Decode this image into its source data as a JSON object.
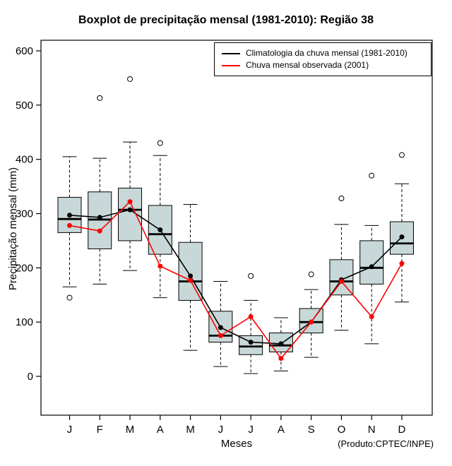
{
  "chart_data": {
    "type": "boxplot",
    "title": "Boxplot de precipitação mensal (1981-2010): Região 38",
    "xlabel": "Meses",
    "ylabel": "Precipitação mensal (mm)",
    "credit": "(Produto:CPTEC/INPE)",
    "ylim": [
      -70,
      620
    ],
    "yticks": [
      0,
      100,
      200,
      300,
      400,
      500,
      600
    ],
    "grid": false,
    "legend_position": "top-right-inside",
    "box_fill": "#c8d8d8",
    "categories": [
      "J",
      "F",
      "M",
      "A",
      "M",
      "J",
      "J",
      "A",
      "S",
      "O",
      "N",
      "D"
    ],
    "legend": [
      {
        "label": "Climatologia da chuva mensal (1981-2010)",
        "color": "#000000"
      },
      {
        "label": "Chuva mensal observada (2001)",
        "color": "#ff0000"
      }
    ],
    "boxes": [
      {
        "low": 165,
        "q1": 265,
        "median": 290,
        "q3": 330,
        "high": 405,
        "outliers": [
          145
        ]
      },
      {
        "low": 170,
        "q1": 235,
        "median": 289,
        "q3": 340,
        "high": 402,
        "outliers": [
          513
        ]
      },
      {
        "low": 195,
        "q1": 250,
        "median": 307,
        "q3": 347,
        "high": 432,
        "outliers": [
          548
        ]
      },
      {
        "low": 145,
        "q1": 225,
        "median": 262,
        "q3": 315,
        "high": 407,
        "outliers": [
          430
        ]
      },
      {
        "low": 48,
        "q1": 140,
        "median": 175,
        "q3": 247,
        "high": 317,
        "outliers": []
      },
      {
        "low": 18,
        "q1": 63,
        "median": 75,
        "q3": 120,
        "high": 175,
        "outliers": []
      },
      {
        "low": 5,
        "q1": 40,
        "median": 55,
        "q3": 75,
        "high": 140,
        "outliers": [
          185
        ]
      },
      {
        "low": 10,
        "q1": 45,
        "median": 57,
        "q3": 80,
        "high": 108,
        "outliers": []
      },
      {
        "low": 35,
        "q1": 80,
        "median": 100,
        "q3": 125,
        "high": 160,
        "outliers": [
          188
        ]
      },
      {
        "low": 85,
        "q1": 150,
        "median": 175,
        "q3": 215,
        "high": 280,
        "outliers": [
          328
        ]
      },
      {
        "low": 60,
        "q1": 170,
        "median": 200,
        "q3": 250,
        "high": 278,
        "outliers": [
          370
        ]
      },
      {
        "low": 137,
        "q1": 225,
        "median": 245,
        "q3": 285,
        "high": 355,
        "outliers": [
          408
        ]
      }
    ],
    "series": [
      {
        "name": "Climatologia da chuva mensal (1981-2010)",
        "color": "#000000",
        "values": [
          297,
          293,
          307,
          270,
          185,
          90,
          63,
          60,
          100,
          178,
          202,
          257
        ]
      },
      {
        "name": "Chuva mensal observada (2001)",
        "color": "#ff0000",
        "values": [
          278,
          268,
          322,
          203,
          177,
          75,
          110,
          33,
          100,
          175,
          110,
          208
        ]
      }
    ]
  }
}
